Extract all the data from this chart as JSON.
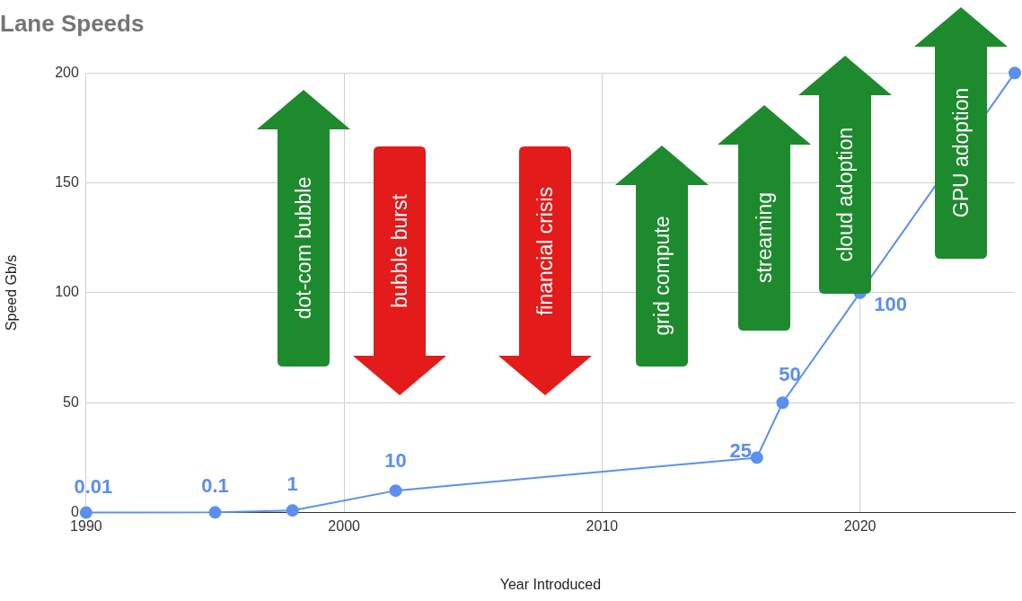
{
  "chart_data": {
    "type": "line",
    "title": "Lane Speeds",
    "xlabel": "Year Introduced",
    "ylabel": "Speed Gb/s",
    "x": [
      1990,
      1995,
      1998,
      2002,
      2016,
      2017,
      2020,
      2026
    ],
    "series": [
      {
        "color": "#5b8ff0",
        "values": [
          0.01,
          0.1,
          1,
          10,
          25,
          50,
          100,
          200
        ],
        "value_labels": [
          "0.01",
          "0.1",
          "1",
          "10",
          "25",
          "50",
          "100",
          null
        ]
      }
    ],
    "xlim": [
      1990,
      2026
    ],
    "xticks": [
      1990,
      2000,
      2010,
      2020
    ],
    "ylim": [
      0,
      200
    ],
    "yticks": [
      0,
      50,
      100,
      150,
      200
    ],
    "grid": true,
    "legend": false,
    "marker": "circle",
    "line_style": "solid",
    "annotations": [
      "dot-com bubble",
      "bubble burst",
      "financial crisis",
      "grid compute",
      "streaming",
      "cloud adoption",
      "GPU adoption"
    ]
  }
}
